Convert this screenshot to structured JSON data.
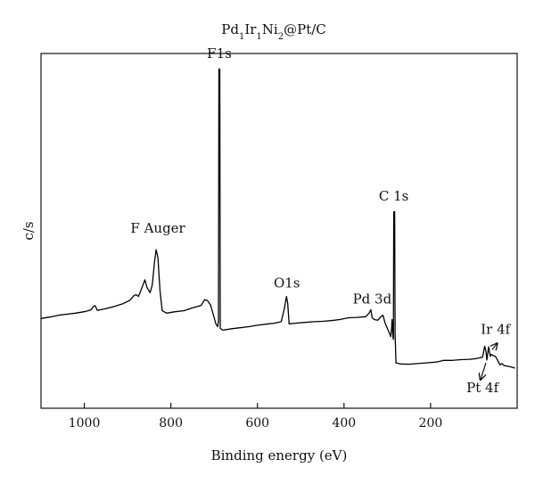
{
  "chart_data": {
    "type": "line",
    "title_parts": [
      {
        "text": "Pd",
        "sub": false
      },
      {
        "text": "1",
        "sub": true
      },
      {
        "text": "Ir",
        "sub": false
      },
      {
        "text": "1",
        "sub": true
      },
      {
        "text": "Ni",
        "sub": false
      },
      {
        "text": "2",
        "sub": true
      },
      {
        "text": "@Pt/C",
        "sub": false
      }
    ],
    "xlabel": "Binding energy (eV)",
    "ylabel": "c/s",
    "xlim": [
      1100,
      0
    ],
    "ylim": [
      0,
      100
    ],
    "xticks": [
      1000,
      800,
      600,
      400,
      200
    ],
    "xtick_labels": [
      "1000",
      "800",
      "600",
      "400",
      "200"
    ],
    "yticks_visible": false,
    "grid": false,
    "series": [
      {
        "color": "#000000",
        "points": [
          [
            1100,
            25.3
          ],
          [
            1080,
            25.7
          ],
          [
            1060,
            26.2
          ],
          [
            1040,
            26.5
          ],
          [
            1020,
            26.8
          ],
          [
            1000,
            27.2
          ],
          [
            985,
            27.7
          ],
          [
            978,
            28.8
          ],
          [
            975,
            28.9
          ],
          [
            970,
            27.6
          ],
          [
            950,
            28.1
          ],
          [
            930,
            28.7
          ],
          [
            910,
            29.5
          ],
          [
            895,
            30.4
          ],
          [
            885,
            31.8
          ],
          [
            880,
            32.0
          ],
          [
            875,
            31.5
          ],
          [
            870,
            33.0
          ],
          [
            865,
            34.6
          ],
          [
            860,
            36.2
          ],
          [
            855,
            34.0
          ],
          [
            848,
            32.6
          ],
          [
            843,
            34.8
          ],
          [
            838,
            41.0
          ],
          [
            834,
            44.7
          ],
          [
            830,
            42.5
          ],
          [
            825,
            33.0
          ],
          [
            820,
            27.5
          ],
          [
            810,
            26.8
          ],
          [
            790,
            27.2
          ],
          [
            770,
            27.5
          ],
          [
            750,
            28.3
          ],
          [
            730,
            29.0
          ],
          [
            722,
            30.6
          ],
          [
            715,
            30.3
          ],
          [
            708,
            29.0
          ],
          [
            700,
            25.5
          ],
          [
            696,
            23.8
          ],
          [
            692,
            23.0
          ],
          [
            690,
            24.5
          ],
          [
            689,
            95.6
          ],
          [
            687,
            95.6
          ],
          [
            686,
            22.5
          ],
          [
            680,
            22.0
          ],
          [
            660,
            22.4
          ],
          [
            640,
            22.7
          ],
          [
            620,
            23.0
          ],
          [
            600,
            23.4
          ],
          [
            580,
            23.7
          ],
          [
            560,
            24.0
          ],
          [
            545,
            24.4
          ],
          [
            538,
            28.0
          ],
          [
            533,
            31.5
          ],
          [
            530,
            29.5
          ],
          [
            527,
            23.8
          ],
          [
            510,
            24.0
          ],
          [
            490,
            24.2
          ],
          [
            470,
            24.4
          ],
          [
            450,
            24.5
          ],
          [
            430,
            24.7
          ],
          [
            410,
            25.0
          ],
          [
            390,
            25.5
          ],
          [
            370,
            25.6
          ],
          [
            350,
            25.8
          ],
          [
            342,
            26.8
          ],
          [
            338,
            27.8
          ],
          [
            335,
            25.5
          ],
          [
            330,
            25.0
          ],
          [
            322,
            24.8
          ],
          [
            315,
            25.8
          ],
          [
            310,
            26.2
          ],
          [
            305,
            24.0
          ],
          [
            298,
            22.0
          ],
          [
            292,
            20.2
          ],
          [
            290,
            22.5
          ],
          [
            289,
            25.0
          ],
          [
            287,
            20.0
          ],
          [
            286,
            19.4
          ],
          [
            285,
            55.4
          ],
          [
            283,
            55.4
          ],
          [
            282,
            21.0
          ],
          [
            280,
            12.8
          ],
          [
            270,
            12.5
          ],
          [
            250,
            12.4
          ],
          [
            230,
            12.6
          ],
          [
            210,
            12.8
          ],
          [
            190,
            13.0
          ],
          [
            180,
            13.2
          ],
          [
            170,
            13.5
          ],
          [
            150,
            13.5
          ],
          [
            130,
            13.7
          ],
          [
            110,
            13.8
          ],
          [
            95,
            14.0
          ],
          [
            80,
            14.4
          ],
          [
            75,
            17.5
          ],
          [
            72,
            16.0
          ],
          [
            70,
            13.6
          ],
          [
            66,
            17.3
          ],
          [
            62,
            14.6
          ],
          [
            60,
            15.2
          ],
          [
            55,
            14.8
          ],
          [
            50,
            14.6
          ],
          [
            45,
            13.5
          ],
          [
            40,
            12.2
          ],
          [
            35,
            12.6
          ],
          [
            30,
            12.0
          ],
          [
            20,
            11.8
          ],
          [
            10,
            11.5
          ],
          [
            5,
            11.3
          ]
        ]
      }
    ],
    "annotations": [
      {
        "text": "F1s",
        "x": 688,
        "y": 98.8
      },
      {
        "text": "F Auger",
        "x": 830,
        "y": 49.5
      },
      {
        "text": "O1s",
        "x": 532,
        "y": 34.0
      },
      {
        "text": "Pd 3d",
        "x": 335,
        "y": 29.5
      },
      {
        "text": "C 1s",
        "x": 285,
        "y": 58.5
      },
      {
        "text": "Ir 4f",
        "x": 50,
        "y": 21.0
      },
      {
        "text": "Pt 4f",
        "x": 80,
        "y": 4.5
      }
    ],
    "arrows": [
      {
        "name": "ir-4f-arrow",
        "from": [
          58,
          16.5
        ],
        "to": [
          46,
          18.3
        ]
      },
      {
        "name": "pt-4f-arrow",
        "from": [
          72,
          12.8
        ],
        "to": [
          85,
          8.0
        ]
      }
    ]
  }
}
